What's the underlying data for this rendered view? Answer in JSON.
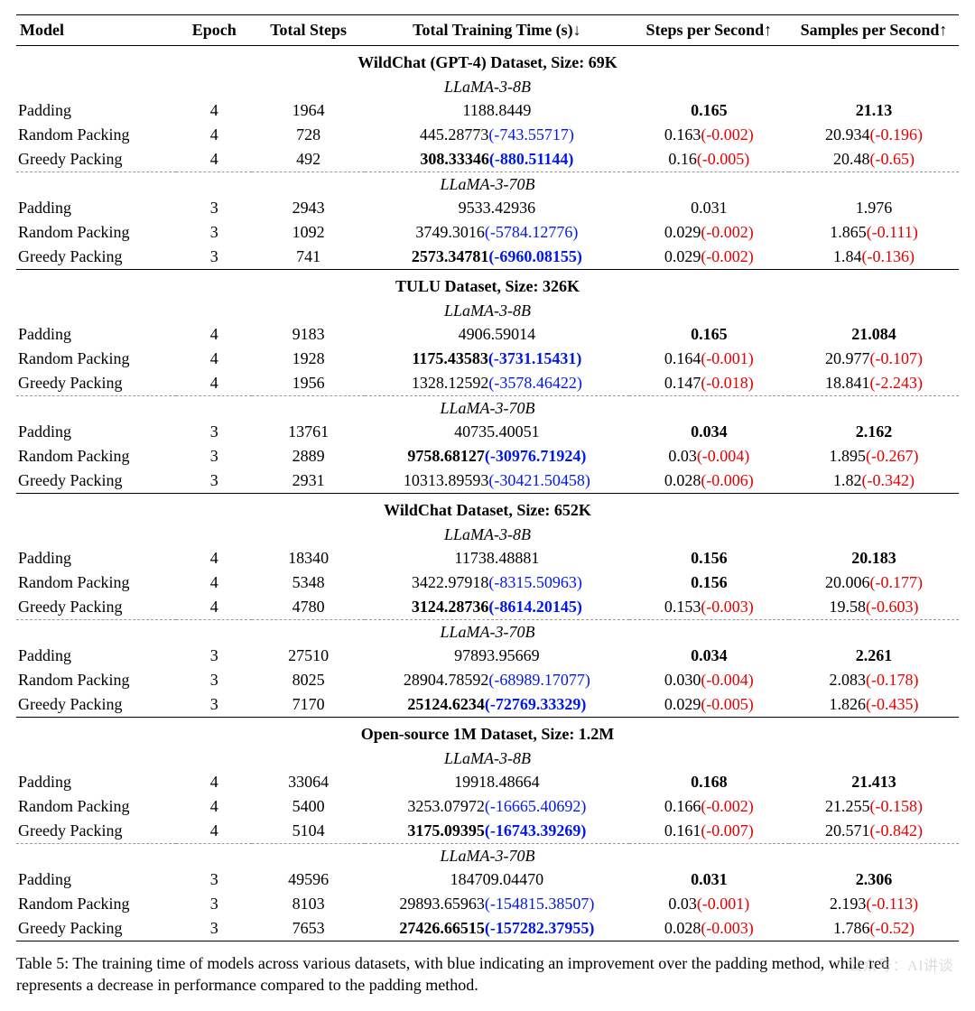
{
  "columns": [
    {
      "label": "Model",
      "align": "left"
    },
    {
      "label": "Epoch"
    },
    {
      "label": "Total Steps"
    },
    {
      "label": "Total Training Time (s)↓"
    },
    {
      "label": "Steps per Second↑"
    },
    {
      "label": "Samples per Second↑"
    }
  ],
  "colors": {
    "improvement": "#0018ee",
    "decrease": "#e60000",
    "text": "#000000",
    "background": "#ffffff",
    "dashed_border": "#9a9a9a"
  },
  "fonts": {
    "family": "Times New Roman",
    "body_size_pt": 13,
    "bold_weight": 700,
    "italic_subheaders": true
  },
  "sections": [
    {
      "title": "WildChat (GPT-4) Dataset, Size: 69K",
      "blocks": [
        {
          "submodel": "LLaMA-3-8B",
          "rows": [
            {
              "model": "Padding",
              "epoch": "4",
              "steps": "1964",
              "time": {
                "value": "1188.8449"
              },
              "sps": {
                "value": "0.165",
                "bold": true
              },
              "smps": {
                "value": "21.13",
                "bold": true
              }
            },
            {
              "model": "Random Packing",
              "epoch": "4",
              "steps": "728",
              "time": {
                "value": "445.28773",
                "delta": "(-743.55717)",
                "delta_color": "blue"
              },
              "sps": {
                "value": "0.163",
                "delta": "(-0.002)",
                "delta_color": "red"
              },
              "smps": {
                "value": "20.934",
                "delta": "(-0.196)",
                "delta_color": "red"
              }
            },
            {
              "model": "Greedy Packing",
              "epoch": "4",
              "steps": "492",
              "time": {
                "value": "308.33346",
                "bold": true,
                "delta": "(-880.51144)",
                "delta_color": "blue",
                "delta_bold": true
              },
              "sps": {
                "value": "0.16",
                "delta": "(-0.005)",
                "delta_color": "red"
              },
              "smps": {
                "value": "20.48",
                "delta": "(-0.65)",
                "delta_color": "red"
              }
            }
          ]
        },
        {
          "submodel": "LLaMA-3-70B",
          "rows": [
            {
              "model": "Padding",
              "epoch": "3",
              "steps": "2943",
              "time": {
                "value": "9533.42936"
              },
              "sps": {
                "value": "0.031"
              },
              "smps": {
                "value": "1.976"
              }
            },
            {
              "model": "Random Packing",
              "epoch": "3",
              "steps": "1092",
              "time": {
                "value": "3749.3016",
                "delta": "(-5784.12776)",
                "delta_color": "blue"
              },
              "sps": {
                "value": "0.029",
                "delta": "(-0.002)",
                "delta_color": "red"
              },
              "smps": {
                "value": "1.865",
                "delta": "(-0.111)",
                "delta_color": "red"
              }
            },
            {
              "model": "Greedy Packing",
              "epoch": "3",
              "steps": "741",
              "time": {
                "value": "2573.34781",
                "bold": true,
                "delta": "(-6960.08155)",
                "delta_color": "blue",
                "delta_bold": true
              },
              "sps": {
                "value": "0.029",
                "delta": "(-0.002)",
                "delta_color": "red"
              },
              "smps": {
                "value": "1.84",
                "delta": "(-0.136)",
                "delta_color": "red"
              }
            }
          ]
        }
      ]
    },
    {
      "title": "TULU Dataset, Size: 326K",
      "blocks": [
        {
          "submodel": "LLaMA-3-8B",
          "rows": [
            {
              "model": "Padding",
              "epoch": "4",
              "steps": "9183",
              "time": {
                "value": "4906.59014"
              },
              "sps": {
                "value": "0.165",
                "bold": true
              },
              "smps": {
                "value": "21.084",
                "bold": true
              }
            },
            {
              "model": "Random Packing",
              "epoch": "4",
              "steps": "1928",
              "time": {
                "value": "1175.43583",
                "bold": true,
                "delta": "(-3731.15431)",
                "delta_color": "blue",
                "delta_bold": true
              },
              "sps": {
                "value": "0.164",
                "delta": "(-0.001)",
                "delta_color": "red"
              },
              "smps": {
                "value": "20.977",
                "delta": "(-0.107)",
                "delta_color": "red"
              }
            },
            {
              "model": "Greedy Packing",
              "epoch": "4",
              "steps": "1956",
              "time": {
                "value": "1328.12592",
                "delta": "(-3578.46422)",
                "delta_color": "blue"
              },
              "sps": {
                "value": "0.147",
                "delta": "(-0.018)",
                "delta_color": "red"
              },
              "smps": {
                "value": "18.841",
                "delta": "(-2.243)",
                "delta_color": "red"
              }
            }
          ]
        },
        {
          "submodel": "LLaMA-3-70B",
          "rows": [
            {
              "model": "Padding",
              "epoch": "3",
              "steps": "13761",
              "time": {
                "value": "40735.40051"
              },
              "sps": {
                "value": "0.034",
                "bold": true
              },
              "smps": {
                "value": "2.162",
                "bold": true
              }
            },
            {
              "model": "Random Packing",
              "epoch": "3",
              "steps": "2889",
              "time": {
                "value": "9758.68127",
                "bold": true,
                "delta": "(-30976.71924)",
                "delta_color": "blue",
                "delta_bold": true
              },
              "sps": {
                "value": "0.03",
                "delta": "(-0.004)",
                "delta_color": "red"
              },
              "smps": {
                "value": "1.895",
                "delta": "(-0.267)",
                "delta_color": "red"
              }
            },
            {
              "model": "Greedy Packing",
              "epoch": "3",
              "steps": "2931",
              "time": {
                "value": "10313.89593",
                "delta": "(-30421.50458)",
                "delta_color": "blue"
              },
              "sps": {
                "value": "0.028",
                "delta": "(-0.006)",
                "delta_color": "red"
              },
              "smps": {
                "value": "1.82",
                "delta": "(-0.342)",
                "delta_color": "red"
              }
            }
          ]
        }
      ]
    },
    {
      "title": "WildChat Dataset, Size: 652K",
      "blocks": [
        {
          "submodel": "LLaMA-3-8B",
          "rows": [
            {
              "model": "Padding",
              "epoch": "4",
              "steps": "18340",
              "time": {
                "value": "11738.48881"
              },
              "sps": {
                "value": "0.156",
                "bold": true
              },
              "smps": {
                "value": "20.183",
                "bold": true
              }
            },
            {
              "model": "Random Packing",
              "epoch": "4",
              "steps": "5348",
              "time": {
                "value": "3422.97918",
                "delta": "(-8315.50963)",
                "delta_color": "blue"
              },
              "sps": {
                "value": "0.156",
                "bold": true
              },
              "smps": {
                "value": "20.006",
                "delta": "(-0.177)",
                "delta_color": "red"
              }
            },
            {
              "model": "Greedy Packing",
              "epoch": "4",
              "steps": "4780",
              "time": {
                "value": "3124.28736",
                "bold": true,
                "delta": "(-8614.20145)",
                "delta_color": "blue",
                "delta_bold": true
              },
              "sps": {
                "value": "0.153",
                "delta": "(-0.003)",
                "delta_color": "red"
              },
              "smps": {
                "value": "19.58",
                "delta": "(-0.603)",
                "delta_color": "red"
              }
            }
          ]
        },
        {
          "submodel": "LLaMA-3-70B",
          "rows": [
            {
              "model": "Padding",
              "epoch": "3",
              "steps": "27510",
              "time": {
                "value": "97893.95669"
              },
              "sps": {
                "value": "0.034",
                "bold": true
              },
              "smps": {
                "value": "2.261",
                "bold": true
              }
            },
            {
              "model": "Random Packing",
              "epoch": "3",
              "steps": "8025",
              "time": {
                "value": "28904.78592",
                "delta": "(-68989.17077)",
                "delta_color": "blue"
              },
              "sps": {
                "value": "0.030",
                "delta": "(-0.004)",
                "delta_color": "red"
              },
              "smps": {
                "value": "2.083",
                "delta": "(-0.178)",
                "delta_color": "red"
              }
            },
            {
              "model": "Greedy Packing",
              "epoch": "3",
              "steps": "7170",
              "time": {
                "value": "25124.6234",
                "bold": true,
                "delta": "(-72769.33329)",
                "delta_color": "blue",
                "delta_bold": true
              },
              "sps": {
                "value": "0.029",
                "delta": "(-0.005)",
                "delta_color": "red"
              },
              "smps": {
                "value": "1.826",
                "delta": "(-0.435)",
                "delta_color": "red"
              }
            }
          ]
        }
      ]
    },
    {
      "title": "Open-source 1M Dataset, Size: 1.2M",
      "blocks": [
        {
          "submodel": "LLaMA-3-8B",
          "rows": [
            {
              "model": "Padding",
              "epoch": "4",
              "steps": "33064",
              "time": {
                "value": "19918.48664"
              },
              "sps": {
                "value": "0.168",
                "bold": true
              },
              "smps": {
                "value": "21.413",
                "bold": true
              }
            },
            {
              "model": "Random Packing",
              "epoch": "4",
              "steps": "5400",
              "time": {
                "value": "3253.07972",
                "delta": "(-16665.40692)",
                "delta_color": "blue"
              },
              "sps": {
                "value": "0.166",
                "delta": "(-0.002)",
                "delta_color": "red"
              },
              "smps": {
                "value": "21.255",
                "delta": "(-0.158)",
                "delta_color": "red"
              }
            },
            {
              "model": "Greedy Packing",
              "epoch": "4",
              "steps": "5104",
              "time": {
                "value": "3175.09395",
                "bold": true,
                "delta": "(-16743.39269)",
                "delta_color": "blue",
                "delta_bold": true
              },
              "sps": {
                "value": "0.161",
                "delta": "(-0.007)",
                "delta_color": "red"
              },
              "smps": {
                "value": "20.571",
                "delta": "(-0.842)",
                "delta_color": "red"
              }
            }
          ]
        },
        {
          "submodel": "LLaMA-3-70B",
          "rows": [
            {
              "model": "Padding",
              "epoch": "3",
              "steps": "49596",
              "time": {
                "value": "184709.04470"
              },
              "sps": {
                "value": "0.031",
                "bold": true
              },
              "smps": {
                "value": "2.306",
                "bold": true
              }
            },
            {
              "model": "Random Packing",
              "epoch": "3",
              "steps": "8103",
              "time": {
                "value": "29893.65963",
                "delta": "(-154815.38507)",
                "delta_color": "blue"
              },
              "sps": {
                "value": "0.03",
                "delta": "(-0.001)",
                "delta_color": "red"
              },
              "smps": {
                "value": "2.193",
                "delta": "(-0.113)",
                "delta_color": "red"
              }
            },
            {
              "model": "Greedy Packing",
              "epoch": "3",
              "steps": "7653",
              "time": {
                "value": "27426.66515",
                "bold": true,
                "delta": "(-157282.37955)",
                "delta_color": "blue",
                "delta_bold": true
              },
              "sps": {
                "value": "0.028",
                "delta": "(-0.003)",
                "delta_color": "red"
              },
              "smps": {
                "value": "1.786",
                "delta": "(-0.52)",
                "delta_color": "red"
              }
            }
          ]
        }
      ]
    }
  ],
  "caption": "Table 5: The training time of models across various datasets, with blue indicating an improvement over the padding method, while red represents a decrease in performance compared to the padding method.",
  "watermark": "公众号：AI讲谈"
}
